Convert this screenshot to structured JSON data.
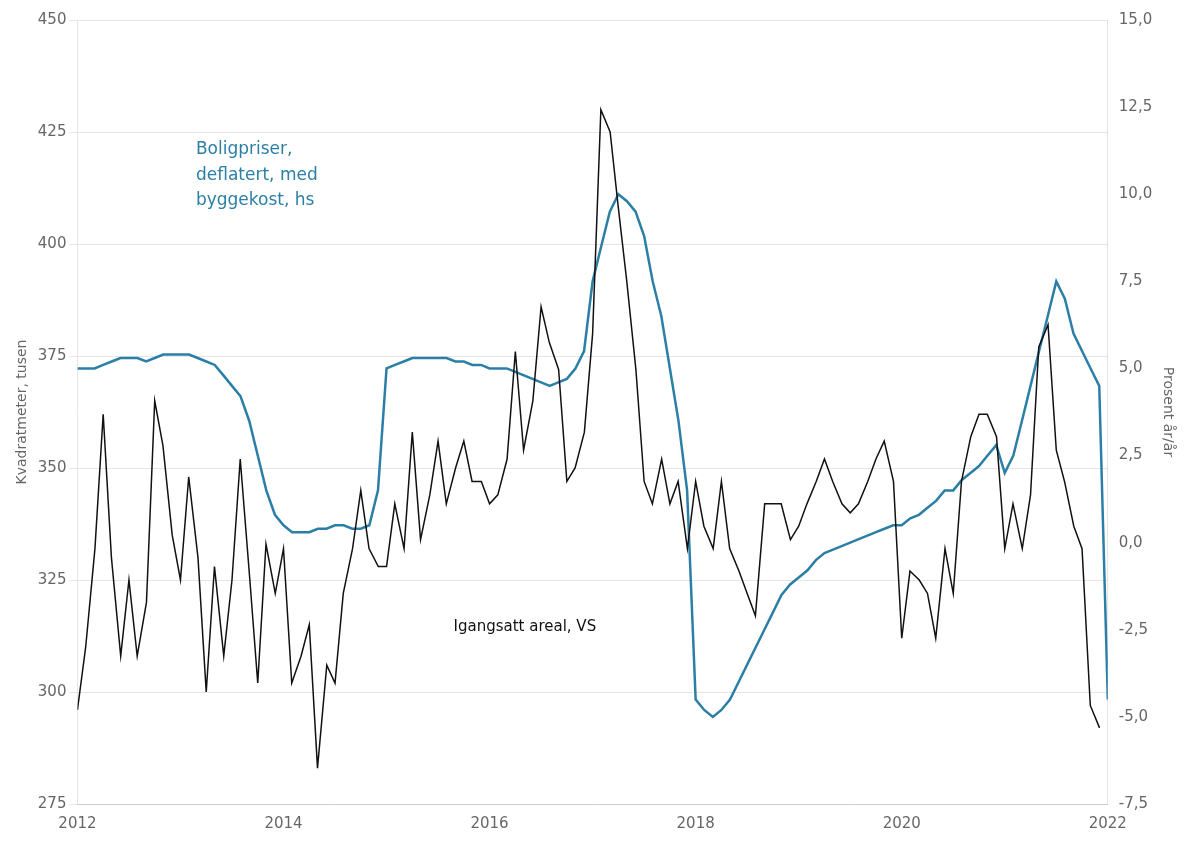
{
  "chart_data": {
    "type": "line",
    "ylabel": "Kvadratmeter, tusen",
    "y2label": "Prosent år/år",
    "annotations": [
      {
        "text": "Boligpriser,\ndeflatert, med\nbyggekost, hs",
        "color": "#2b7fa6"
      },
      {
        "text": "Igangsatt areal, VS",
        "color": "#111111"
      }
    ],
    "xlim": [
      2012.0,
      2022.0
    ],
    "xticks": [
      2012,
      2014,
      2016,
      2018,
      2020,
      2022
    ],
    "ylim": [
      275,
      450
    ],
    "yticks": [
      275,
      300,
      325,
      350,
      375,
      400,
      425,
      450
    ],
    "y2lim": [
      -7.5,
      15.0
    ],
    "y2ticks": [
      {
        "value": -7.5,
        "label": "-7,5"
      },
      {
        "value": -5.0,
        "label": "-5,0"
      },
      {
        "value": -2.5,
        "label": "-2,5"
      },
      {
        "value": 0.0,
        "label": "0,0"
      },
      {
        "value": 2.5,
        "label": "2,5"
      },
      {
        "value": 5.0,
        "label": "5,0"
      },
      {
        "value": 7.5,
        "label": "7,5"
      },
      {
        "value": 10.0,
        "label": "10,0"
      },
      {
        "value": 12.5,
        "label": "12,5"
      },
      {
        "value": 15.0,
        "label": "15,0"
      }
    ],
    "grid": "y",
    "series": [
      {
        "color": "#111111",
        "axis": "y",
        "x": [
          2012.0,
          2012.08,
          2012.17,
          2012.25,
          2012.33,
          2012.42,
          2012.5,
          2012.58,
          2012.67,
          2012.75,
          2012.83,
          2012.92,
          2013.0,
          2013.08,
          2013.17,
          2013.25,
          2013.33,
          2013.42,
          2013.5,
          2013.58,
          2013.67,
          2013.75,
          2013.83,
          2013.92,
          2014.0,
          2014.08,
          2014.17,
          2014.25,
          2014.33,
          2014.42,
          2014.5,
          2014.58,
          2014.67,
          2014.75,
          2014.83,
          2014.92,
          2015.0,
          2015.08,
          2015.17,
          2015.25,
          2015.33,
          2015.42,
          2015.5,
          2015.58,
          2015.67,
          2015.75,
          2015.83,
          2015.92,
          2016.0,
          2016.08,
          2016.17,
          2016.25,
          2016.33,
          2016.42,
          2016.5,
          2016.58,
          2016.67,
          2016.75,
          2016.83,
          2016.92,
          2017.0,
          2017.08,
          2017.17,
          2017.25,
          2017.33,
          2017.42,
          2017.5,
          2017.58,
          2017.67,
          2017.75,
          2017.83,
          2017.92,
          2018.0,
          2018.08,
          2018.17,
          2018.25,
          2018.33,
          2018.42,
          2018.5,
          2018.58,
          2018.67,
          2018.75,
          2018.83,
          2018.92,
          2019.0,
          2019.08,
          2019.17,
          2019.25,
          2019.33,
          2019.42,
          2019.5,
          2019.58,
          2019.67,
          2019.75,
          2019.83,
          2019.92,
          2020.0,
          2020.08,
          2020.17,
          2020.25,
          2020.33,
          2020.42,
          2020.5,
          2020.58,
          2020.67,
          2020.75,
          2020.83,
          2020.92,
          2021.0,
          2021.08,
          2021.17,
          2021.25,
          2021.33,
          2021.42,
          2021.5,
          2021.58,
          2021.67,
          2021.75,
          2021.83,
          2021.92
        ],
        "values": [
          296,
          310,
          332,
          362,
          330,
          308,
          325,
          308,
          320,
          365,
          355,
          335,
          325,
          348,
          330,
          300,
          328,
          308,
          325,
          352,
          326,
          302,
          333,
          322,
          332,
          302,
          308,
          315,
          283,
          306,
          302,
          322,
          332,
          345,
          332,
          328,
          328,
          342,
          332,
          358,
          334,
          344,
          356,
          342,
          350,
          356,
          347,
          347,
          342,
          344,
          352,
          376,
          354,
          365,
          386,
          378,
          372,
          347,
          350,
          358,
          380,
          430,
          425,
          408,
          392,
          372,
          347,
          342,
          352,
          342,
          347,
          332,
          347,
          337,
          332,
          347,
          332,
          327,
          322,
          317,
          342,
          342,
          342,
          334,
          337,
          342,
          347,
          352,
          347,
          342,
          340,
          342,
          347,
          352,
          356,
          347,
          312,
          327,
          325,
          322,
          312,
          332,
          322,
          347,
          357,
          362,
          362,
          357,
          332,
          342,
          332,
          344,
          377,
          382,
          354,
          347,
          337,
          332,
          297,
          292
        ]
      },
      {
        "color": "#2b7fa6",
        "axis": "y2",
        "x": [
          2012.0,
          2012.083,
          2012.167,
          2012.25,
          2012.333,
          2012.417,
          2012.5,
          2012.583,
          2012.667,
          2012.75,
          2012.833,
          2012.917,
          2013.0,
          2013.083,
          2013.167,
          2013.25,
          2013.333,
          2013.417,
          2013.5,
          2013.583,
          2013.667,
          2013.75,
          2013.833,
          2013.917,
          2014.0,
          2014.083,
          2014.167,
          2014.25,
          2014.333,
          2014.417,
          2014.5,
          2014.583,
          2014.667,
          2014.75,
          2014.833,
          2014.917,
          2015.0,
          2015.083,
          2015.167,
          2015.25,
          2015.333,
          2015.417,
          2015.5,
          2015.583,
          2015.667,
          2015.75,
          2015.833,
          2015.917,
          2016.0,
          2016.083,
          2016.167,
          2016.25,
          2016.333,
          2016.417,
          2016.5,
          2016.583,
          2016.667,
          2016.75,
          2016.833,
          2016.917,
          2017.0,
          2017.083,
          2017.167,
          2017.25,
          2017.333,
          2017.417,
          2017.5,
          2017.583,
          2017.667,
          2017.75,
          2017.833,
          2017.917,
          2018.0,
          2018.083,
          2018.167,
          2018.25,
          2018.333,
          2018.417,
          2018.5,
          2018.583,
          2018.667,
          2018.75,
          2018.833,
          2018.917,
          2019.0,
          2019.083,
          2019.167,
          2019.25,
          2019.333,
          2019.417,
          2019.5,
          2019.583,
          2019.667,
          2019.75,
          2019.833,
          2019.917,
          2020.0,
          2020.083,
          2020.167,
          2020.25,
          2020.333,
          2020.417,
          2020.5,
          2020.583,
          2020.667,
          2020.75,
          2020.833,
          2020.917,
          2021.0,
          2021.083,
          2021.167,
          2021.25,
          2021.333,
          2021.417,
          2021.5,
          2021.583,
          2021.667,
          2021.75,
          2021.833,
          2021.917,
          2022.0
        ],
        "values": [
          5.0,
          5.0,
          5.0,
          5.1,
          5.2,
          5.3,
          5.3,
          5.3,
          5.2,
          5.3,
          5.4,
          5.4,
          5.4,
          5.4,
          5.3,
          5.2,
          5.1,
          4.8,
          4.5,
          4.2,
          3.5,
          2.5,
          1.5,
          0.8,
          0.5,
          0.3,
          0.3,
          0.3,
          0.4,
          0.4,
          0.5,
          0.5,
          0.4,
          0.4,
          0.5,
          1.5,
          5.0,
          5.1,
          5.2,
          5.3,
          5.3,
          5.3,
          5.3,
          5.3,
          5.2,
          5.2,
          5.1,
          5.1,
          5.0,
          5.0,
          5.0,
          4.9,
          4.8,
          4.7,
          4.6,
          4.5,
          4.6,
          4.7,
          5.0,
          5.5,
          7.5,
          8.5,
          9.5,
          10.0,
          9.8,
          9.5,
          8.8,
          7.5,
          6.5,
          5.0,
          3.5,
          1.5,
          -4.5,
          -4.8,
          -5.0,
          -4.8,
          -4.5,
          -4.0,
          -3.5,
          -3.0,
          -2.5,
          -2.0,
          -1.5,
          -1.2,
          -1.0,
          -0.8,
          -0.5,
          -0.3,
          -0.2,
          -0.1,
          0.0,
          0.1,
          0.2,
          0.3,
          0.4,
          0.5,
          0.5,
          0.7,
          0.8,
          1.0,
          1.2,
          1.5,
          1.5,
          1.8,
          2.0,
          2.2,
          2.5,
          2.8,
          2.0,
          2.5,
          3.5,
          4.5,
          5.5,
          6.5,
          7.5,
          7.0,
          6.0,
          5.5,
          5.0,
          4.5,
          -4.5
        ]
      }
    ]
  }
}
